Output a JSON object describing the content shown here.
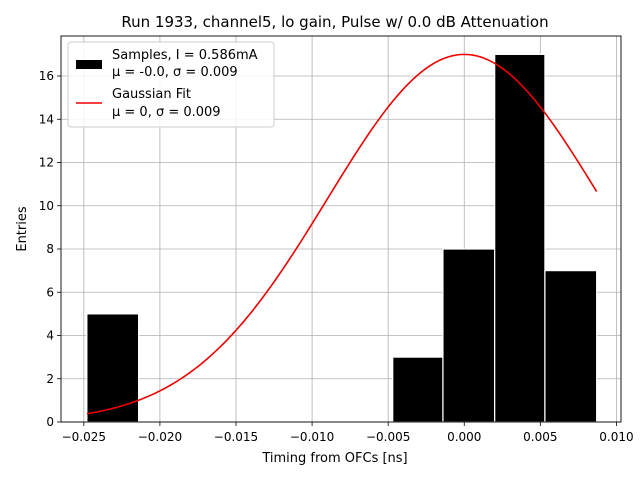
{
  "chart_data": {
    "type": "bar",
    "title": "Run 1933, channel5, lo gain, Pulse w/ 0.0 dB Attenuation",
    "xlabel": "Timing from OFCs [ns]",
    "ylabel": "Entries",
    "xlim": [
      -0.0265,
      0.0103
    ],
    "ylim": [
      0,
      17.85
    ],
    "grid": true,
    "legend_position": "top-left",
    "x_ticks": [
      {
        "value": -0.025,
        "label": "−0.025"
      },
      {
        "value": -0.02,
        "label": "−0.020"
      },
      {
        "value": -0.015,
        "label": "−0.015"
      },
      {
        "value": -0.01,
        "label": "−0.010"
      },
      {
        "value": -0.005,
        "label": "−0.005"
      },
      {
        "value": 0.0,
        "label": "0.000"
      },
      {
        "value": 0.005,
        "label": "0.005"
      },
      {
        "value": 0.01,
        "label": "0.010"
      }
    ],
    "y_ticks": [
      {
        "value": 0,
        "label": "0"
      },
      {
        "value": 2,
        "label": "2"
      },
      {
        "value": 4,
        "label": "4"
      },
      {
        "value": 6,
        "label": "6"
      },
      {
        "value": 8,
        "label": "8"
      },
      {
        "value": 10,
        "label": "10"
      },
      {
        "value": 12,
        "label": "12"
      },
      {
        "value": 14,
        "label": "14"
      },
      {
        "value": 16,
        "label": "16"
      }
    ],
    "histogram": {
      "name": "Samples, I = 0.586mA",
      "stats": "μ = -0.0, σ = 0.009",
      "color": "#000000",
      "edge_color": "#ffffff",
      "bins": [
        {
          "x0": -0.0248,
          "x1": -0.0214,
          "count": 5
        },
        {
          "x0": -0.0214,
          "x1": -0.0181,
          "count": 0
        },
        {
          "x0": -0.0181,
          "x1": -0.0147,
          "count": 0
        },
        {
          "x0": -0.0147,
          "x1": -0.0114,
          "count": 0
        },
        {
          "x0": -0.0114,
          "x1": -0.008,
          "count": 0
        },
        {
          "x0": -0.008,
          "x1": -0.0047,
          "count": 0
        },
        {
          "x0": -0.0047,
          "x1": -0.0014,
          "count": 3
        },
        {
          "x0": -0.0014,
          "x1": 0.002,
          "count": 8
        },
        {
          "x0": 0.002,
          "x1": 0.0053,
          "count": 17
        },
        {
          "x0": 0.0053,
          "x1": 0.0087,
          "count": 7
        }
      ]
    },
    "fit": {
      "name": "Gaussian Fit",
      "stats": "μ = 0, σ = 0.009",
      "color": "#ee0000",
      "mu": 0.0,
      "sigma": 0.009,
      "amplitude": 17.0,
      "x_range": [
        -0.0248,
        0.0087
      ]
    }
  }
}
